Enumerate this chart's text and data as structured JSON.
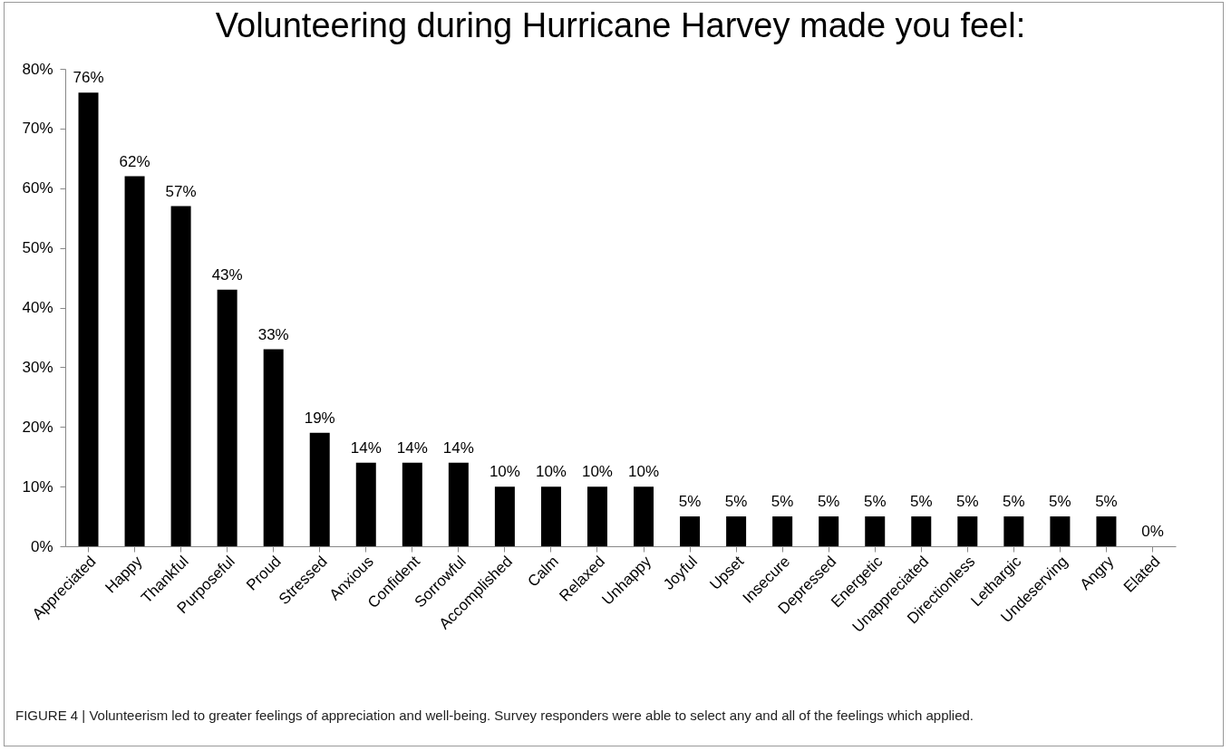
{
  "chart_data": {
    "type": "bar",
    "title": "Volunteering during Hurricane Harvey made you feel:",
    "categories": [
      "Appreciated",
      "Happy",
      "Thankful",
      "Purposeful",
      "Proud",
      "Stressed",
      "Anxious",
      "Confident",
      "Sorrowful",
      "Accomplished",
      "Calm",
      "Relaxed",
      "Unhappy",
      "Joyful",
      "Upset",
      "Insecure",
      "Depressed",
      "Energetic",
      "Unappreciated",
      "Directionless",
      "Lethargic",
      "Undeserving",
      "Angry",
      "Elated"
    ],
    "values": [
      76,
      62,
      57,
      43,
      33,
      19,
      14,
      14,
      14,
      10,
      10,
      10,
      10,
      5,
      5,
      5,
      5,
      5,
      5,
      5,
      5,
      5,
      5,
      0
    ],
    "value_labels": [
      "76%",
      "62%",
      "57%",
      "43%",
      "33%",
      "19%",
      "14%",
      "14%",
      "14%",
      "10%",
      "10%",
      "10%",
      "10%",
      "5%",
      "5%",
      "5%",
      "5%",
      "5%",
      "5%",
      "5%",
      "5%",
      "5%",
      "5%",
      "0%"
    ],
    "color": "#000000",
    "ylim": [
      0,
      80
    ],
    "yticks": [
      {
        "value": 0,
        "label": "0%"
      },
      {
        "value": 10,
        "label": "10%"
      },
      {
        "value": 20,
        "label": "20%"
      },
      {
        "value": 30,
        "label": "30%"
      },
      {
        "value": 40,
        "label": "40%"
      },
      {
        "value": 50,
        "label": "50%"
      },
      {
        "value": 60,
        "label": "60%"
      },
      {
        "value": 70,
        "label": "70%"
      },
      {
        "value": 80,
        "label": "80%"
      }
    ],
    "grid": false,
    "annotations": [
      "FIGURE 4 | Volunteerism led to greater feelings of appreciation and well-being. Survey responders were able to select any and all of the feelings which applied."
    ]
  }
}
